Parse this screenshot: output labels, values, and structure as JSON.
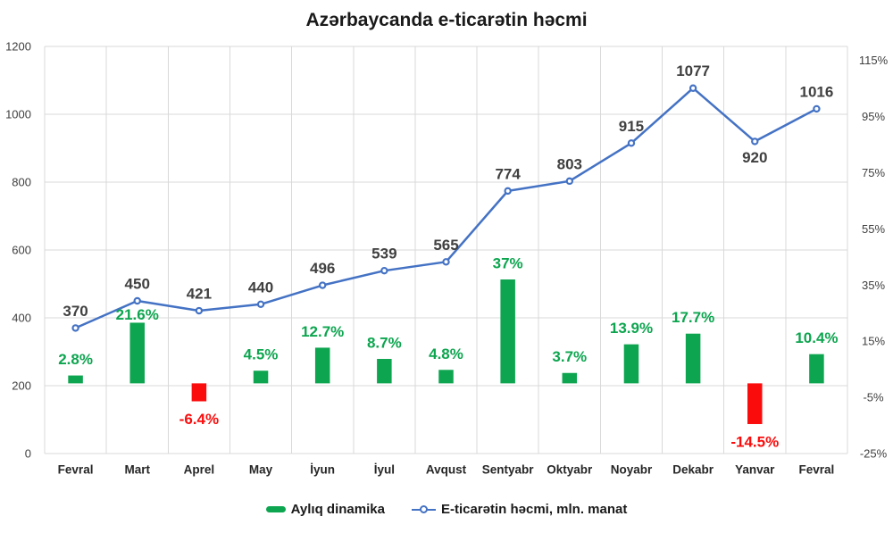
{
  "chart_data": {
    "type": "combo",
    "title": "Azərbaycanda e-ticarətin həcmi",
    "categories": [
      "Fevral",
      "Mart",
      "Aprel",
      "May",
      "İyun",
      "İyul",
      "Avqust",
      "Sentyabr",
      "Oktyabr",
      "Noyabr",
      "Dekabr",
      "Yanvar",
      "Fevral"
    ],
    "series": [
      {
        "name": "Aylıq dinamika",
        "type": "bar",
        "axis": "right",
        "values": [
          2.8,
          21.6,
          -6.4,
          4.5,
          12.7,
          8.7,
          4.8,
          37,
          3.7,
          13.9,
          17.7,
          -14.5,
          10.4
        ],
        "labels": [
          "2.8%",
          "21.6%",
          "-6.4%",
          "4.5%",
          "12.7%",
          "8.7%",
          "4.8%",
          "37%",
          "3.7%",
          "13.9%",
          "17.7%",
          "-14.5%",
          "10.4%"
        ],
        "label_dy": [
          0,
          9,
          0,
          0,
          0,
          0,
          0,
          0,
          0,
          0,
          0,
          0,
          0
        ]
      },
      {
        "name": "E-ticarətin həcmi, mln. manat",
        "type": "line",
        "axis": "left",
        "values": [
          370,
          450,
          421,
          440,
          496,
          539,
          565,
          774,
          803,
          915,
          1077,
          920,
          1016
        ],
        "labels": [
          "370",
          "450",
          "421",
          "440",
          "496",
          "539",
          "565",
          "774",
          "803",
          "915",
          "1077",
          "920",
          "1016"
        ],
        "label_positions": [
          "above",
          "above",
          "above",
          "above",
          "above",
          "above",
          "above",
          "above",
          "above",
          "above",
          "above",
          "below",
          "above"
        ]
      }
    ],
    "left_axis": {
      "min": 0,
      "max": 1200,
      "step": 200,
      "ticks": [
        "0",
        "200",
        "400",
        "600",
        "800",
        "1000",
        "1200"
      ]
    },
    "right_axis": {
      "min": -25,
      "max": 120,
      "step": 20,
      "ticks": [
        "-25%",
        "-5%",
        "15%",
        "35%",
        "55%",
        "75%",
        "95%",
        "115%"
      ]
    },
    "grid": true,
    "legend_position": "bottom",
    "colors": {
      "bar_positive": "#0DA54F",
      "bar_negative": "#FB0C0C",
      "line": "#4472C4",
      "value_label": "#404040",
      "axis_label": "#404040",
      "category_label": "#262626",
      "gridline": "#D9D9D9",
      "title": "#1a1a1a",
      "background": "#ffffff"
    }
  }
}
